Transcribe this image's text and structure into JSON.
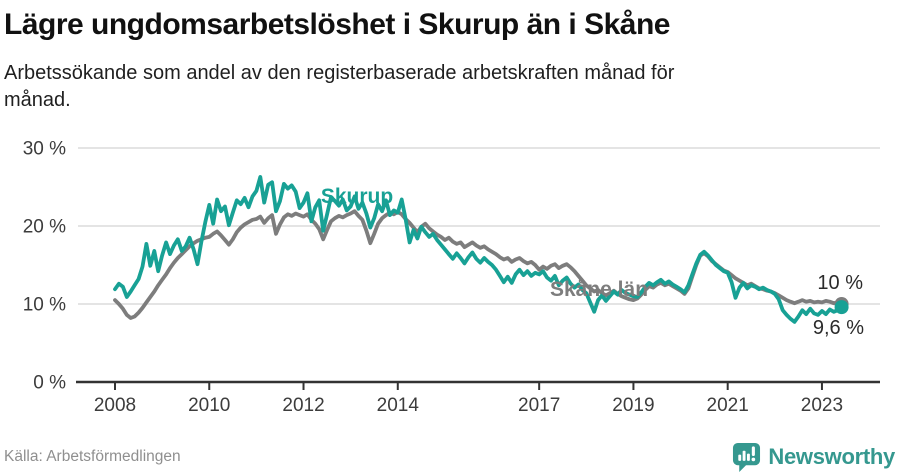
{
  "header": {
    "title": "Lägre ungdomsarbetslöshet i Skurup än i Skåne",
    "subtitle": "Arbetssökande som andel av den registerbaserade arbetskraften månad för månad."
  },
  "footer": {
    "source": "Källa: Arbetsförmedlingen",
    "brand": "Newsworthy"
  },
  "colors": {
    "skurup": "#18a195",
    "skane": "#7d7d7d",
    "grid": "#dcdcdc",
    "axis": "#333333",
    "tick_label": "#3c3c3c",
    "annotation": "#2b2b2b",
    "logo": "#35988f"
  },
  "chart_data": {
    "type": "line",
    "title": "Lägre ungdomsarbetslöshet i Skurup än i Skåne",
    "subtitle": "Arbetssökande som andel av den registerbaserade arbetskraften månad för månad.",
    "x_unit": "monthly, decimal years",
    "x_start": 2008.0,
    "x_step_months": 1,
    "x_ticks": [
      2008,
      2010,
      2012,
      2014,
      2017,
      2019,
      2021,
      2023
    ],
    "y_ticks": [
      0,
      10,
      20,
      30
    ],
    "y_tick_suffix": " %",
    "ylim": [
      0,
      30
    ],
    "xlim": [
      2007.2,
      2024.2
    ],
    "grid": true,
    "legend_position": "inline-labels",
    "annotations": {
      "skurup_label": "Skurup",
      "skane_label": "Skåne län",
      "end_value_skane": "10 %",
      "end_value_skurup": "9,6 %"
    },
    "series": [
      {
        "name": "Skåne län",
        "color": "#7d7d7d",
        "values": [
          10.5,
          10.0,
          9.4,
          8.6,
          8.2,
          8.4,
          8.9,
          9.5,
          10.2,
          10.9,
          11.6,
          12.4,
          13.1,
          13.8,
          14.6,
          15.3,
          15.9,
          16.4,
          16.9,
          17.4,
          17.8,
          18.1,
          18.3,
          18.5,
          18.6,
          19.0,
          19.3,
          18.8,
          18.2,
          17.6,
          18.3,
          19.2,
          19.8,
          20.2,
          20.5,
          20.8,
          20.9,
          21.2,
          20.4,
          21.0,
          21.4,
          19.0,
          20.2,
          21.1,
          21.5,
          21.3,
          21.6,
          21.4,
          21.2,
          21.5,
          20.8,
          20.3,
          19.6,
          18.3,
          19.5,
          20.6,
          21.0,
          21.3,
          21.1,
          21.4,
          21.6,
          21.9,
          21.3,
          20.8,
          19.4,
          17.8,
          19.0,
          20.3,
          21.0,
          21.4,
          21.7,
          21.5,
          21.8,
          21.5,
          20.9,
          20.4,
          19.8,
          19.2,
          19.9,
          20.3,
          19.7,
          19.3,
          18.9,
          18.6,
          18.2,
          18.5,
          18.0,
          17.7,
          17.9,
          17.3,
          17.6,
          17.9,
          17.5,
          17.2,
          17.4,
          17.0,
          16.7,
          16.4,
          16.0,
          15.7,
          15.9,
          15.4,
          15.7,
          15.9,
          15.5,
          15.2,
          15.4,
          15.0,
          14.4,
          14.8,
          14.5,
          14.9,
          15.1,
          14.6,
          14.9,
          15.1,
          14.7,
          14.2,
          13.6,
          13.0,
          12.4,
          12.0,
          11.6,
          11.8,
          11.4,
          11.1,
          11.4,
          11.7,
          11.3,
          11.0,
          10.8,
          10.6,
          10.5,
          10.7,
          11.2,
          11.8,
          12.3,
          12.1,
          12.5,
          12.7,
          12.4,
          12.6,
          12.3,
          12.0,
          11.7,
          11.3,
          12.0,
          13.5,
          15.0,
          16.2,
          16.5,
          16.1,
          15.5,
          15.1,
          14.7,
          14.3,
          14.1,
          13.7,
          13.3,
          13.0,
          12.7,
          12.4,
          12.6,
          12.3,
          12.0,
          11.9,
          11.7,
          11.6,
          11.4,
          11.1,
          10.8,
          10.5,
          10.3,
          10.1,
          10.3,
          10.5,
          10.3,
          10.4,
          10.2,
          10.3,
          10.2,
          10.4,
          10.3,
          10.1,
          10.2,
          10.0
        ]
      },
      {
        "name": "Skurup",
        "color": "#18a195",
        "values": [
          11.9,
          12.6,
          12.2,
          10.9,
          11.6,
          12.4,
          13.2,
          14.8,
          17.7,
          14.9,
          16.8,
          14.2,
          16.2,
          17.9,
          16.4,
          17.5,
          18.3,
          16.8,
          17.4,
          18.5,
          17.0,
          15.1,
          18.0,
          20.5,
          22.7,
          20.3,
          23.4,
          21.9,
          22.5,
          20.1,
          21.7,
          23.3,
          22.8,
          23.6,
          22.4,
          23.8,
          24.5,
          26.3,
          23.0,
          25.3,
          25.6,
          21.9,
          23.2,
          25.4,
          24.8,
          25.2,
          24.4,
          22.3,
          23.0,
          24.2,
          20.6,
          22.4,
          23.3,
          19.4,
          21.5,
          23.7,
          23.2,
          22.6,
          23.4,
          22.0,
          22.5,
          23.8,
          22.2,
          23.0,
          21.6,
          19.8,
          21.0,
          22.8,
          21.9,
          23.3,
          21.4,
          22.0,
          21.7,
          23.4,
          20.9,
          17.9,
          19.5,
          18.4,
          19.9,
          19.2,
          18.6,
          19.0,
          18.2,
          17.6,
          17.0,
          16.4,
          15.8,
          16.5,
          15.9,
          15.2,
          16.0,
          16.6,
          15.8,
          15.3,
          15.9,
          15.4,
          15.0,
          14.4,
          13.6,
          12.8,
          13.5,
          12.7,
          13.8,
          14.4,
          13.7,
          14.2,
          13.6,
          14.0,
          13.8,
          14.2,
          13.4,
          13.0,
          13.6,
          12.4,
          13.0,
          13.4,
          12.6,
          12.1,
          12.5,
          11.8,
          11.4,
          10.2,
          9.0,
          10.5,
          11.1,
          10.4,
          11.0,
          11.6,
          11.2,
          11.8,
          11.4,
          11.2,
          11.0,
          10.9,
          11.5,
          12.2,
          12.7,
          12.4,
          12.8,
          13.1,
          12.6,
          12.9,
          12.5,
          12.2,
          11.9,
          11.5,
          12.4,
          13.8,
          15.2,
          16.3,
          16.7,
          16.2,
          15.6,
          15.0,
          14.6,
          14.2,
          14.0,
          12.8,
          10.8,
          12.1,
          12.7,
          12.0,
          12.4,
          12.2,
          11.9,
          12.1,
          11.8,
          11.6,
          11.3,
          10.6,
          9.2,
          8.6,
          8.1,
          7.7,
          8.4,
          9.2,
          8.7,
          9.4,
          8.8,
          8.6,
          9.1,
          8.7,
          9.3,
          9.0,
          9.2,
          9.6
        ]
      }
    ]
  }
}
